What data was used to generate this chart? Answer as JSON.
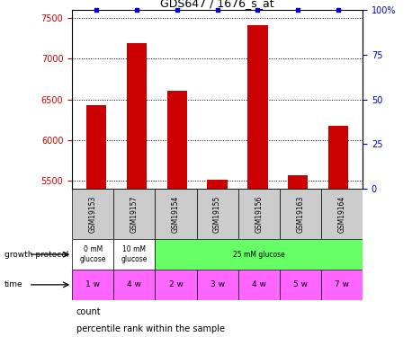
{
  "title": "GDS647 / 1676_s_at",
  "samples": [
    "GSM19153",
    "GSM19157",
    "GSM19154",
    "GSM19155",
    "GSM19156",
    "GSM19163",
    "GSM19164"
  ],
  "counts": [
    6430,
    7190,
    6610,
    5510,
    7420,
    5570,
    6170
  ],
  "percentiles": [
    100,
    100,
    100,
    100,
    100,
    100,
    100
  ],
  "ylim_left": [
    5400,
    7600
  ],
  "ylim_right": [
    0,
    100
  ],
  "yticks_left": [
    5500,
    6000,
    6500,
    7000,
    7500
  ],
  "yticks_right": [
    0,
    25,
    50,
    75,
    100
  ],
  "bar_color": "#cc0000",
  "percentile_color": "#0000cc",
  "growth_protocol_groups": [
    {
      "label": "0 mM\nglucose",
      "span": 1,
      "color": "#ffffff"
    },
    {
      "label": "10 mM\nglucose",
      "span": 1,
      "color": "#ffffff"
    },
    {
      "label": "25 mM glucose",
      "span": 5,
      "color": "#66ff66"
    }
  ],
  "time_labels": [
    "1 w",
    "4 w",
    "2 w",
    "3 w",
    "4 w",
    "5 w",
    "7 w"
  ],
  "time_color": "#ff66ff",
  "sample_bg_color": "#cccccc",
  "fig_bg": "#ffffff",
  "legend_items": [
    {
      "label": "count",
      "color": "#cc0000"
    },
    {
      "label": "percentile rank within the sample",
      "color": "#0000cc"
    }
  ]
}
